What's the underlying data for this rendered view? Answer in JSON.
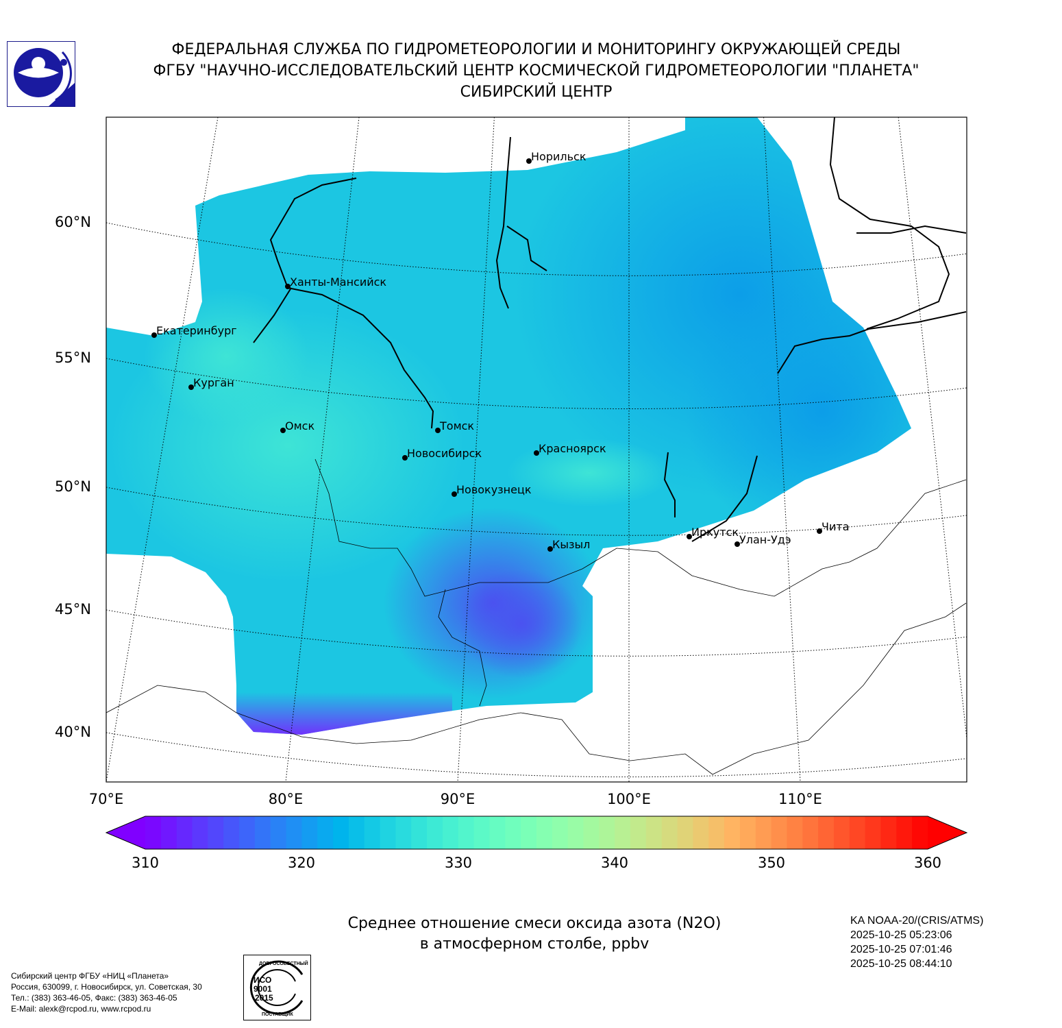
{
  "header": {
    "line1": "ФЕДЕРАЛЬНАЯ СЛУЖБА ПО ГИДРОМЕТЕОРОЛОГИИ И МОНИТОРИНГУ ОКРУЖАЮЩЕЙ СРЕДЫ",
    "line2": "ФГБУ \"НАУЧНО-ИССЛЕДОВАТЕЛЬСКИЙ ЦЕНТР КОСМИЧЕСКОЙ ГИДРОМЕТЕОРОЛОГИИ \"ПЛАНЕТА\"",
    "line3": "СИБИРСКИЙ ЦЕНТР"
  },
  "map": {
    "lat_labels": [
      "60°N",
      "55°N",
      "50°N",
      "45°N",
      "40°N"
    ],
    "lon_labels": [
      "70°E",
      "80°E",
      "90°E",
      "100°E",
      "110°E"
    ],
    "cities": [
      "Норильск",
      "Ханты-Мансийск",
      "Екатеринбург",
      "Курган",
      "Омск",
      "Томск",
      "Новосибирск",
      "Красноярск",
      "Новокузнецк",
      "Кызыл",
      "Иркутск",
      "Улан-Удэ",
      "Чита"
    ]
  },
  "colorbar": {
    "min": 310,
    "max": 360,
    "steps": 50,
    "colormap": "rainbow",
    "ticks": [
      "310",
      "320",
      "330",
      "340",
      "350",
      "360"
    ]
  },
  "title": {
    "line1": "Среднее отношение смеси оксида азота (N2O)",
    "line2": "в атмосферном столбе, ppbv"
  },
  "satellite": {
    "name": "KA NOAA-20/(CRIS/ATMS)",
    "times": [
      "2025-10-25 05:23:06",
      "2025-10-25 07:01:46",
      "2025-10-25 08:44:10"
    ]
  },
  "address": {
    "lines": [
      "Сибирский центр ФГБУ «НИЦ «Планета»",
      "Россия, 630099, г. Новосибирск, ул. Советская, 30",
      "Тел.: (383) 363-46-05, Факс: (383) 363-46-05",
      "E-Mail: alexk@rcpod.ru, www.rcpod.ru"
    ]
  },
  "iso_badge": {
    "top": "ДОБРОСОВЕСТНЫЙ",
    "center": "ИСО 9001 -2015",
    "bottom": "ПОСТАВЩИК"
  }
}
